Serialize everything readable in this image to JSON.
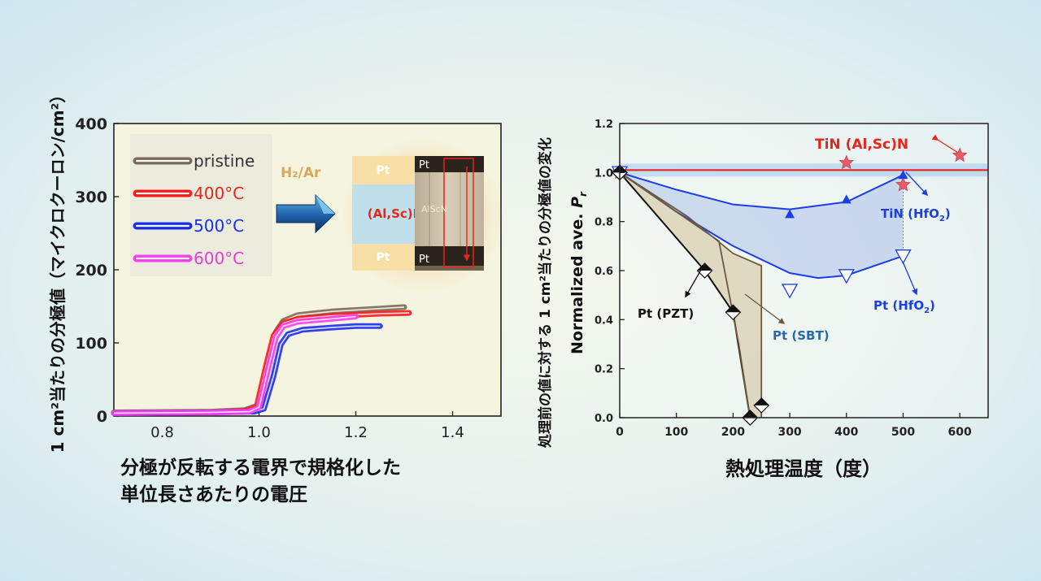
{
  "left_chart": {
    "ylabel": "1 cm²当たりの分極値（マイクロクーロン/cm²）",
    "xlabel_line1": "分極が反転する電界で規格化した",
    "xlabel_line2": "単位長さあたりの電圧",
    "legend": [
      {
        "label": "pristine",
        "color": "#7a6a55",
        "label_color": "#333333"
      },
      {
        "label": "400°C",
        "color": "#ff1a1a",
        "label_color": "#e8251c"
      },
      {
        "label": "500°C",
        "color": "#1a2ef0",
        "label_color": "#1a2ef0"
      },
      {
        "label": "600°C",
        "color": "#ff3df0",
        "label_color": "#e83cd6"
      }
    ],
    "inset": {
      "gas": "H₂/Ar",
      "top": "Pt",
      "middle": "(Al,Sc)N",
      "bottom": "Pt",
      "tem_top": "Pt",
      "tem_mid": "AlScN",
      "tem_bottom": "Pt"
    }
  },
  "right_chart": {
    "ylabel_jp": "処理前の値に対する 1 cm²当たりの分極値の変化",
    "ylabel_en": "Normalized ave.",
    "ylabel_symbol": "P",
    "ylabel_sub": "r",
    "xlabel": "熱処理温度（度）",
    "annotations": {
      "tin_alscn": "TiN (Al,Sc)N",
      "tin_hfo2": "TiN (HfO",
      "pt_hfo2": "Pt (HfO",
      "pt_pzt": "Pt (PZT)",
      "pt_sbt": "Pt (SBT)",
      "subscript2": "2",
      "close_paren": ")"
    }
  },
  "colors": {
    "red": "#e8251c",
    "blue": "#1a3ee8",
    "black": "#111111",
    "brown": "#6b5a40"
  },
  "chart_data": [
    {
      "type": "line",
      "title": "",
      "xlabel": "分極が反転する電界で規格化した 単位長さあたりの電圧",
      "ylabel": "1 cm²当たりの分極値（マイクロクーロン/cm²）",
      "xlim": [
        0.7,
        1.5
      ],
      "ylim": [
        0,
        400
      ],
      "xticks": [
        0.8,
        1.0,
        1.2,
        1.4
      ],
      "yticks": [
        0,
        100,
        200,
        300,
        400
      ],
      "series": [
        {
          "name": "pristine",
          "x": [
            0.7,
            0.9,
            0.97,
            1.0,
            1.02,
            1.035,
            1.05,
            1.08,
            1.15,
            1.25,
            1.3
          ],
          "y": [
            5,
            6,
            8,
            15,
            75,
            115,
            130,
            138,
            143,
            147,
            149
          ]
        },
        {
          "name": "400°C",
          "x": [
            0.7,
            0.9,
            0.97,
            0.995,
            1.015,
            1.03,
            1.05,
            1.08,
            1.15,
            1.25,
            1.31
          ],
          "y": [
            4,
            5,
            7,
            12,
            70,
            110,
            127,
            133,
            137,
            140,
            141
          ]
        },
        {
          "name": "500°C",
          "x": [
            0.7,
            0.9,
            0.99,
            1.01,
            1.03,
            1.045,
            1.06,
            1.09,
            1.15,
            1.2,
            1.25
          ],
          "y": [
            4,
            5,
            6,
            10,
            55,
            98,
            112,
            118,
            121,
            123,
            123
          ]
        },
        {
          "name": "600°C",
          "x": [
            0.7,
            0.9,
            0.98,
            1.0,
            1.02,
            1.035,
            1.05,
            1.08,
            1.15,
            1.2
          ],
          "y": [
            4,
            5,
            6,
            12,
            68,
            108,
            123,
            129,
            133,
            136
          ]
        }
      ]
    },
    {
      "type": "scatter",
      "title": "",
      "xlabel": "熱処理温度（度）",
      "ylabel": "Normalized ave. Pr",
      "xlim": [
        0,
        650
      ],
      "ylim": [
        0,
        1.2
      ],
      "xticks": [
        0,
        100,
        200,
        300,
        400,
        500,
        600
      ],
      "yticks": [
        0.0,
        0.2,
        0.4,
        0.6,
        0.8,
        1.0,
        1.2
      ],
      "series": [
        {
          "name": "TiN (Al,Sc)N",
          "marker": "star",
          "x": [
            0,
            400,
            500,
            600
          ],
          "y": [
            1.0,
            1.04,
            0.95,
            1.07
          ]
        },
        {
          "name": "TiN (HfO2)",
          "marker": "triangle-up-filled",
          "x": [
            0,
            300,
            400,
            500
          ],
          "y": [
            1.0,
            0.83,
            0.89,
            0.99
          ]
        },
        {
          "name": "Pt (HfO2)",
          "marker": "triangle-down-open",
          "x": [
            0,
            300,
            400,
            500
          ],
          "y": [
            1.0,
            0.52,
            0.58,
            0.66
          ]
        },
        {
          "name": "Pt (PZT)",
          "marker": "diamond-half",
          "x": [
            0,
            150,
            200,
            230
          ],
          "y": [
            1.0,
            0.6,
            0.43,
            0.0
          ]
        },
        {
          "name": "Pt (SBT)",
          "marker": "diamond-half",
          "x": [
            0,
            230,
            250
          ],
          "y": [
            1.0,
            0.0,
            0.05
          ]
        }
      ],
      "reference_line": {
        "name": "TiN (Al,Sc)N",
        "y": 1.01
      }
    }
  ]
}
